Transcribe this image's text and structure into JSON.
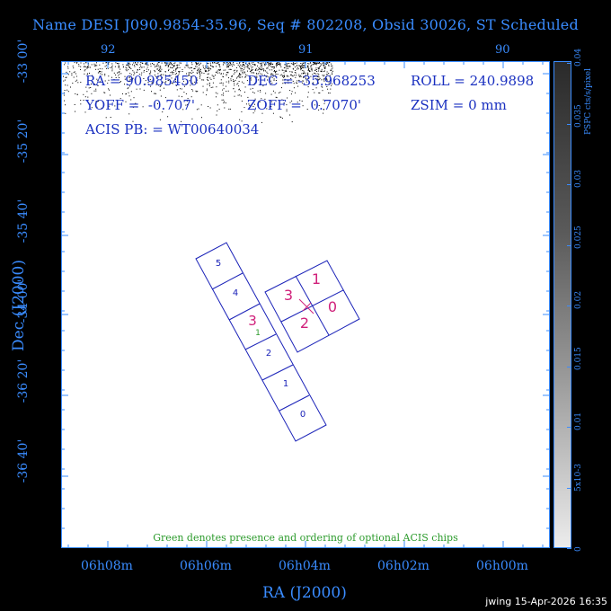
{
  "title": "Name DESI J090.9854-35.96, Seq # 802208, Obsid 30026, ST Scheduled",
  "info": {
    "ra": "RA = 90.985450",
    "dec": "DEC = -35.968253",
    "roll": "ROLL = 240.9898",
    "yoff": "YOFF =  -0.707'",
    "zoff": "ZOFF =  0.7070'",
    "zsim": "ZSIM = 0 mm",
    "acis_pb": "ACIS PB: = WT00640034"
  },
  "note": "Green denotes presence and ordering of optional ACIS chips",
  "footer": "jwing 15-Apr-2026 16:35",
  "colors": {
    "frame": "#3a8cff",
    "chips": "#1a22b8",
    "magenta": "#d0207a",
    "green": "#2a9a2a"
  },
  "chart_data": {
    "type": "scatter",
    "xlabel": "RA (J2000)",
    "ylabel": "Dec (J2000)",
    "x_ticks": [
      "06h08m",
      "06h06m",
      "06h04m",
      "06h02m",
      "06h00m"
    ],
    "top_ticks": [
      "92",
      "91",
      "90"
    ],
    "y_ticks": [
      "-33 00'",
      "-35 20'",
      "-35 40'",
      "-34 00'",
      "-36 20'",
      "-36 40'"
    ],
    "colorbar": {
      "label": "PSPC cts/s/pixel",
      "ticks": [
        "0",
        "5x10-3",
        "0.01",
        "0.015",
        "0.02",
        "0.025",
        "0.03",
        "0.035",
        "0.04"
      ]
    },
    "chip_labels": {
      "acis_i": [
        "0",
        "1",
        "2",
        "3"
      ],
      "acis_s": [
        "0",
        "1",
        "2",
        "3",
        "4",
        "5"
      ],
      "acis_s_magenta": "3",
      "acis_s_green": "1"
    }
  }
}
